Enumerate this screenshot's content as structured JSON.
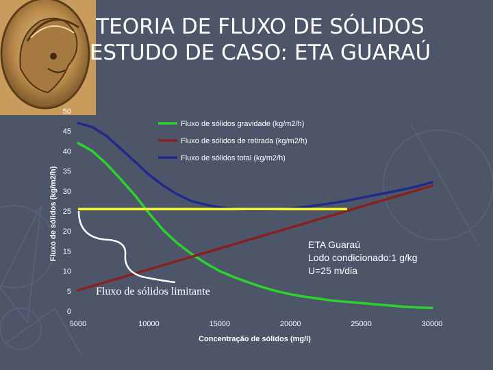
{
  "slide": {
    "title_line1": "TEORIA DE FLUXO DE SÓLIDOS",
    "title_line2": "ESTUDO DE CASO: ETA GUARAÚ"
  },
  "colors": {
    "background": "#4d5569",
    "gravity": "#2bd42b",
    "withdrawal": "#8a1f1f",
    "total": "#1e2a8c",
    "limit": "#ffff33",
    "text": "#ffffff"
  },
  "annotation": {
    "line1": "ETA Guaraú",
    "line2": "Lodo condicionado:1 g/kg",
    "line3": "U=25 m/dia"
  },
  "limit_label": "Fluxo de sólidos limitante",
  "chart_data": {
    "type": "line",
    "xlabel": "Concentração de sólidos (mg/l)",
    "ylabel": "Fluxo de sólidos (kg/m2/h)",
    "xlim": [
      5000,
      30000
    ],
    "ylim": [
      0,
      50
    ],
    "xticks": [
      5000,
      10000,
      15000,
      20000,
      25000,
      30000
    ],
    "yticks": [
      0,
      5,
      10,
      15,
      20,
      25,
      30,
      35,
      40,
      45,
      50
    ],
    "legend_position": "top-right",
    "series": [
      {
        "name": "Fluxo de sólidos gravidade (kg/m2/h)",
        "color": "#2bd42b",
        "x": [
          5000,
          6000,
          7000,
          8000,
          9000,
          10000,
          11000,
          12000,
          13000,
          14000,
          15000,
          16000,
          17000,
          18000,
          19000,
          20000,
          21000,
          22000,
          23000,
          24000,
          25000,
          26000,
          27000,
          28000,
          29000,
          30000
        ],
        "y": [
          42.0,
          40.0,
          36.8,
          33.0,
          29.0,
          24.5,
          20.3,
          17.0,
          14.3,
          12.0,
          10.0,
          8.5,
          7.2,
          6.0,
          5.0,
          4.2,
          3.6,
          3.1,
          2.6,
          2.3,
          2.0,
          1.7,
          1.4,
          1.1,
          0.9,
          0.8
        ]
      },
      {
        "name": "Fluxo de sólidos de retirada (kg/m2/h)",
        "color": "#8a1f1f",
        "x": [
          5000,
          30000
        ],
        "y": [
          5.2,
          31.3
        ]
      },
      {
        "name": "Fluxo de sólidos total (kg/m2/h)",
        "color": "#1e2a8c",
        "x": [
          5000,
          6000,
          7000,
          8000,
          9000,
          10000,
          11000,
          12000,
          13000,
          14000,
          15000,
          16000,
          17000,
          18000,
          19000,
          20000,
          21000,
          22000,
          23000,
          24000,
          25000,
          26000,
          27000,
          28000,
          29000,
          30000
        ],
        "y": [
          47.0,
          46.0,
          43.8,
          40.6,
          37.4,
          34.1,
          31.4,
          29.2,
          27.5,
          26.6,
          25.9,
          25.5,
          25.3,
          25.3,
          25.4,
          25.6,
          26.0,
          26.5,
          27.0,
          27.6,
          28.3,
          29.0,
          29.7,
          30.4,
          31.2,
          32.2
        ]
      }
    ],
    "overlay": {
      "limit_line": {
        "y": 25.5,
        "x_start": 5000,
        "x_end": 24000,
        "color": "#ffff33"
      }
    }
  }
}
